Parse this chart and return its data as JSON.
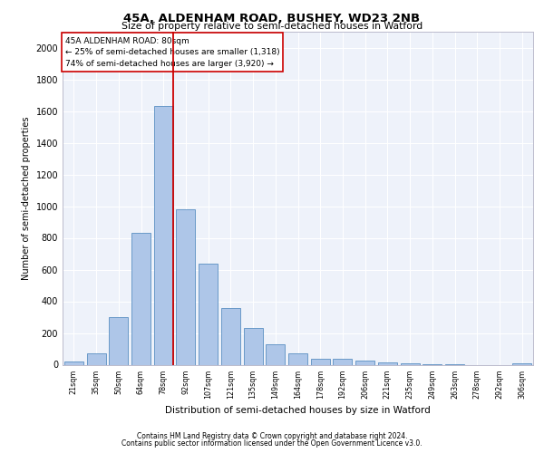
{
  "title1": "45A, ALDENHAM ROAD, BUSHEY, WD23 2NB",
  "title2": "Size of property relative to semi-detached houses in Watford",
  "xlabel": "Distribution of semi-detached houses by size in Watford",
  "ylabel": "Number of semi-detached properties",
  "categories": [
    "21sqm",
    "35sqm",
    "50sqm",
    "64sqm",
    "78sqm",
    "92sqm",
    "107sqm",
    "121sqm",
    "135sqm",
    "149sqm",
    "164sqm",
    "178sqm",
    "192sqm",
    "206sqm",
    "221sqm",
    "235sqm",
    "249sqm",
    "263sqm",
    "278sqm",
    "292sqm",
    "306sqm"
  ],
  "values": [
    20,
    70,
    300,
    830,
    1630,
    980,
    640,
    360,
    230,
    130,
    70,
    35,
    35,
    28,
    15,
    8,
    3,
    3,
    0,
    0,
    8
  ],
  "bar_color": "#aec6e8",
  "bar_edge_color": "#5a8fc2",
  "vline_x_index": 4,
  "vline_color": "#cc0000",
  "annotation_text": "45A ALDENHAM ROAD: 80sqm\n← 25% of semi-detached houses are smaller (1,318)\n74% of semi-detached houses are larger (3,920) →",
  "annotation_box_color": "#ffffff",
  "annotation_box_edge": "#cc0000",
  "ylim": [
    0,
    2100
  ],
  "yticks": [
    0,
    200,
    400,
    600,
    800,
    1000,
    1200,
    1400,
    1600,
    1800,
    2000
  ],
  "footer1": "Contains HM Land Registry data © Crown copyright and database right 2024.",
  "footer2": "Contains public sector information licensed under the Open Government Licence v3.0.",
  "plot_bg_color": "#eef2fa",
  "grid_color": "#ffffff",
  "title1_fontsize": 9.5,
  "title2_fontsize": 7.8,
  "xlabel_fontsize": 7.5,
  "ylabel_fontsize": 7.0,
  "xtick_fontsize": 5.8,
  "ytick_fontsize": 7.0,
  "annotation_fontsize": 6.5,
  "footer_fontsize": 5.5
}
